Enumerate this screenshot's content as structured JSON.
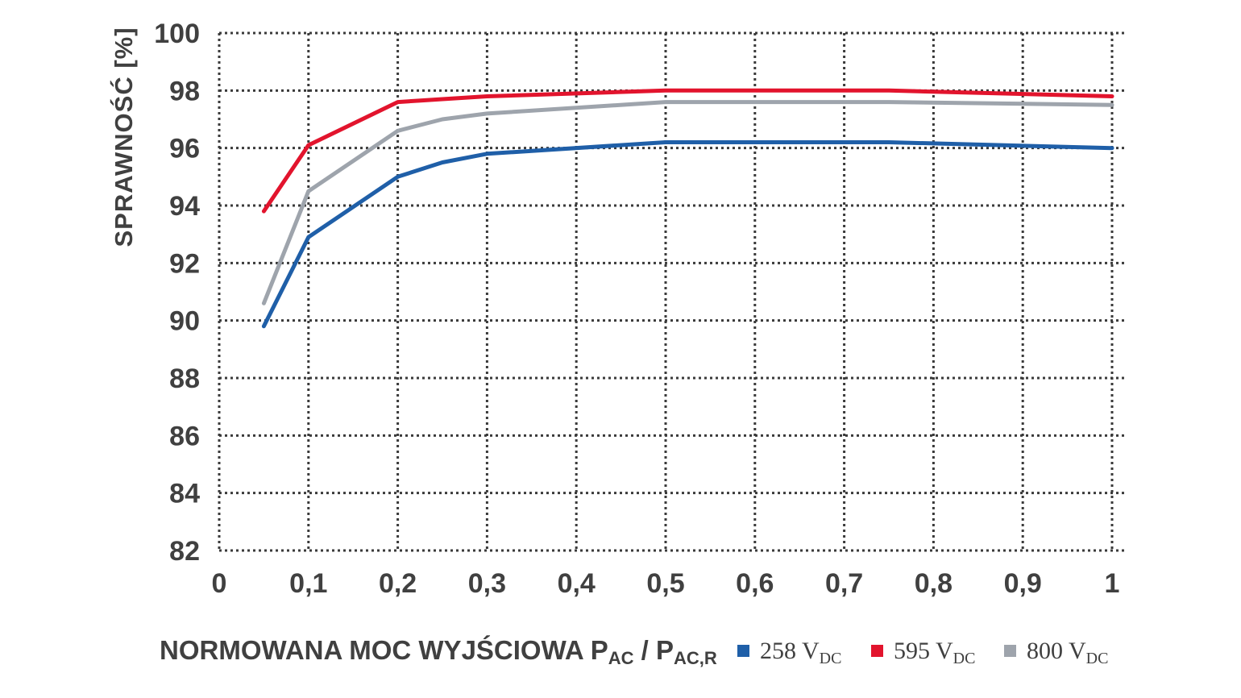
{
  "chart_data": {
    "type": "line",
    "ylabel": "SPRAWNOŚĆ [%]",
    "xlabel": {
      "main": "NORMOWANA MOC WYJŚCIOWA P",
      "sub1": "AC",
      "sep": " / P",
      "sub2": "AC,R"
    },
    "xlim": [
      0,
      1
    ],
    "ylim": [
      82,
      100
    ],
    "xticks": [
      0,
      0.1,
      0.2,
      0.3,
      0.4,
      0.5,
      0.6,
      0.7,
      0.8,
      0.9,
      1
    ],
    "xtick_labels": [
      "0",
      "0,1",
      "0,2",
      "0,3",
      "0,4",
      "0,5",
      "0,6",
      "0,7",
      "0,8",
      "0,9",
      "1"
    ],
    "yticks": [
      82,
      84,
      86,
      88,
      90,
      92,
      94,
      96,
      98,
      100
    ],
    "ytick_labels": [
      "82",
      "84",
      "86",
      "88",
      "90",
      "92",
      "94",
      "96",
      "98",
      "100"
    ],
    "grid": true,
    "legend_position": "bottom-right",
    "series": [
      {
        "name": "258 V",
        "name_sub": "DC",
        "color": "#1f5fa8",
        "x": [
          0.05,
          0.1,
          0.2,
          0.25,
          0.3,
          0.5,
          0.75,
          1.0
        ],
        "values": [
          89.8,
          92.9,
          95.0,
          95.5,
          95.8,
          96.2,
          96.2,
          96.0
        ]
      },
      {
        "name": "595 V",
        "name_sub": "DC",
        "color": "#e2142d",
        "x": [
          0.05,
          0.1,
          0.2,
          0.25,
          0.3,
          0.5,
          0.75,
          1.0
        ],
        "values": [
          93.8,
          96.1,
          97.6,
          97.7,
          97.8,
          98.0,
          98.0,
          97.8
        ]
      },
      {
        "name": "800 V",
        "name_sub": "DC",
        "color": "#9ea4ac",
        "x": [
          0.05,
          0.1,
          0.2,
          0.25,
          0.3,
          0.5,
          0.75,
          1.0
        ],
        "values": [
          90.6,
          94.5,
          96.6,
          97.0,
          97.2,
          97.6,
          97.6,
          97.5
        ]
      }
    ]
  }
}
